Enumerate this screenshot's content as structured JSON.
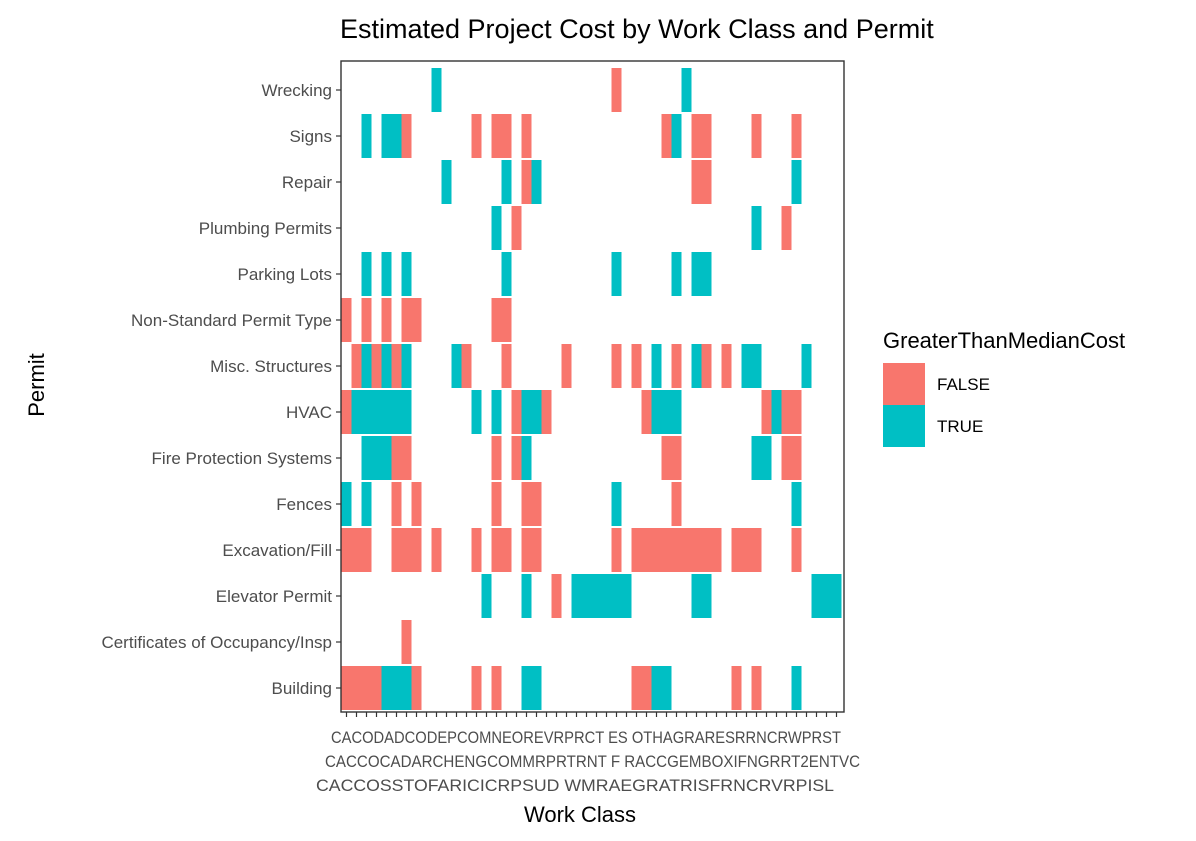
{
  "chart_data": {
    "type": "heatmap",
    "title": "Estimated Project Cost by Work Class and Permit",
    "xlabel": "Work Class",
    "ylabel": "Permit",
    "x_tick_count": 50,
    "x_tick_label_rows": [
      "CACODADCODEPCOMNEOREVRPRCT ES OTHAGRARESRRNCRWPRST",
      "CACCOCADARCHENGCOMMRPRTRNT F RACCGEMBOXIFNGRRT2ENTVC",
      "CACCOSSTOFARICICRPSUD WMRAEGRATRISFRNCRVRPISL"
    ],
    "y_categories": [
      "Building",
      "Certificates of Occupancy/Insp",
      "Elevator Permit",
      "Excavation/Fill",
      "Fences",
      "Fire Protection Systems",
      "HVAC",
      "Misc. Structures",
      "Non-Standard Permit Type",
      "Parking Lots",
      "Plumbing Permits",
      "Repair",
      "Signs",
      "Wrecking"
    ],
    "legend": {
      "title": "GreaterThanMedianCost",
      "position": "right",
      "entries": [
        {
          "label": "FALSE",
          "color": "#f8766d"
        },
        {
          "label": "TRUE",
          "color": "#00bfc4"
        }
      ]
    },
    "grid": false,
    "cells": [
      {
        "permit": "Building",
        "runs": [
          [
            1,
            4,
            "F"
          ],
          [
            5,
            7,
            "T"
          ],
          [
            8,
            8,
            "F"
          ],
          [
            14,
            14,
            "F"
          ],
          [
            16,
            16,
            "F"
          ],
          [
            19,
            20,
            "T"
          ],
          [
            30,
            31,
            "F"
          ],
          [
            32,
            33,
            "T"
          ],
          [
            40,
            40,
            "F"
          ],
          [
            42,
            42,
            "F"
          ],
          [
            46,
            46,
            "T"
          ]
        ]
      },
      {
        "permit": "Certificates of Occupancy/Insp",
        "runs": [
          [
            7,
            7,
            "F"
          ]
        ]
      },
      {
        "permit": "Elevator Permit",
        "runs": [
          [
            15,
            15,
            "T"
          ],
          [
            19,
            19,
            "T"
          ],
          [
            22,
            22,
            "F"
          ],
          [
            24,
            29,
            "T"
          ],
          [
            36,
            37,
            "T"
          ],
          [
            48,
            50,
            "T"
          ]
        ]
      },
      {
        "permit": "Excavation/Fill",
        "runs": [
          [
            1,
            3,
            "F"
          ],
          [
            6,
            8,
            "F"
          ],
          [
            10,
            10,
            "F"
          ],
          [
            14,
            14,
            "F"
          ],
          [
            16,
            17,
            "F"
          ],
          [
            19,
            20,
            "F"
          ],
          [
            28,
            28,
            "F"
          ],
          [
            30,
            38,
            "F"
          ],
          [
            40,
            42,
            "F"
          ],
          [
            46,
            46,
            "F"
          ]
        ]
      },
      {
        "permit": "Fences",
        "runs": [
          [
            1,
            1,
            "T"
          ],
          [
            3,
            3,
            "T"
          ],
          [
            6,
            6,
            "F"
          ],
          [
            8,
            8,
            "F"
          ],
          [
            16,
            16,
            "F"
          ],
          [
            19,
            20,
            "F"
          ],
          [
            28,
            28,
            "T"
          ],
          [
            34,
            34,
            "F"
          ],
          [
            46,
            46,
            "T"
          ]
        ]
      },
      {
        "permit": "Fire Protection Systems",
        "runs": [
          [
            3,
            5,
            "T"
          ],
          [
            6,
            7,
            "F"
          ],
          [
            16,
            16,
            "F"
          ],
          [
            18,
            18,
            "F"
          ],
          [
            19,
            19,
            "T"
          ],
          [
            33,
            34,
            "F"
          ],
          [
            42,
            43,
            "T"
          ],
          [
            45,
            46,
            "F"
          ]
        ]
      },
      {
        "permit": "HVAC",
        "runs": [
          [
            1,
            1,
            "F"
          ],
          [
            2,
            7,
            "T"
          ],
          [
            14,
            14,
            "T"
          ],
          [
            16,
            16,
            "T"
          ],
          [
            18,
            18,
            "F"
          ],
          [
            19,
            20,
            "T"
          ],
          [
            21,
            21,
            "F"
          ],
          [
            31,
            31,
            "F"
          ],
          [
            32,
            34,
            "T"
          ],
          [
            43,
            43,
            "F"
          ],
          [
            44,
            44,
            "T"
          ],
          [
            45,
            46,
            "F"
          ]
        ]
      },
      {
        "permit": "Misc. Structures",
        "runs": [
          [
            2,
            2,
            "F"
          ],
          [
            3,
            3,
            "T"
          ],
          [
            4,
            4,
            "F"
          ],
          [
            5,
            5,
            "T"
          ],
          [
            6,
            6,
            "F"
          ],
          [
            7,
            7,
            "T"
          ],
          [
            12,
            12,
            "T"
          ],
          [
            13,
            13,
            "F"
          ],
          [
            17,
            17,
            "F"
          ],
          [
            23,
            23,
            "F"
          ],
          [
            28,
            28,
            "F"
          ],
          [
            30,
            30,
            "F"
          ],
          [
            32,
            32,
            "T"
          ],
          [
            34,
            34,
            "F"
          ],
          [
            36,
            36,
            "T"
          ],
          [
            37,
            37,
            "F"
          ],
          [
            39,
            39,
            "F"
          ],
          [
            41,
            42,
            "T"
          ],
          [
            47,
            47,
            "T"
          ]
        ]
      },
      {
        "permit": "Non-Standard Permit Type",
        "runs": [
          [
            1,
            1,
            "F"
          ],
          [
            3,
            3,
            "F"
          ],
          [
            5,
            5,
            "F"
          ],
          [
            7,
            8,
            "F"
          ],
          [
            16,
            17,
            "F"
          ]
        ]
      },
      {
        "permit": "Parking Lots",
        "runs": [
          [
            3,
            3,
            "T"
          ],
          [
            5,
            5,
            "T"
          ],
          [
            7,
            7,
            "T"
          ],
          [
            17,
            17,
            "T"
          ],
          [
            28,
            28,
            "T"
          ],
          [
            34,
            34,
            "T"
          ],
          [
            36,
            37,
            "T"
          ]
        ]
      },
      {
        "permit": "Plumbing Permits",
        "runs": [
          [
            16,
            16,
            "T"
          ],
          [
            18,
            18,
            "F"
          ],
          [
            42,
            42,
            "T"
          ],
          [
            45,
            45,
            "F"
          ]
        ]
      },
      {
        "permit": "Repair",
        "runs": [
          [
            11,
            11,
            "T"
          ],
          [
            17,
            17,
            "T"
          ],
          [
            19,
            19,
            "F"
          ],
          [
            20,
            20,
            "T"
          ],
          [
            36,
            37,
            "F"
          ],
          [
            46,
            46,
            "T"
          ]
        ]
      },
      {
        "permit": "Signs",
        "runs": [
          [
            3,
            3,
            "T"
          ],
          [
            5,
            6,
            "T"
          ],
          [
            7,
            7,
            "F"
          ],
          [
            14,
            14,
            "F"
          ],
          [
            16,
            17,
            "F"
          ],
          [
            19,
            19,
            "F"
          ],
          [
            33,
            33,
            "F"
          ],
          [
            34,
            34,
            "T"
          ],
          [
            36,
            37,
            "F"
          ],
          [
            42,
            42,
            "F"
          ],
          [
            46,
            46,
            "F"
          ]
        ]
      },
      {
        "permit": "Wrecking",
        "runs": [
          [
            10,
            10,
            "T"
          ],
          [
            28,
            28,
            "F"
          ],
          [
            35,
            35,
            "T"
          ]
        ]
      }
    ]
  }
}
